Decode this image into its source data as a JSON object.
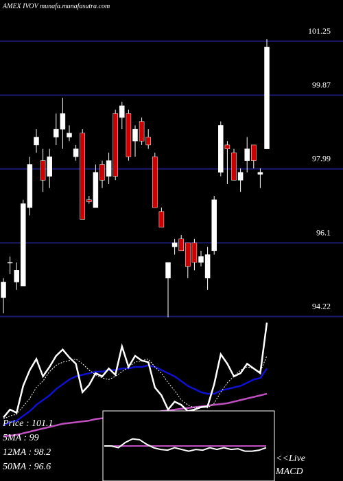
{
  "chart_data": {
    "type": "candlestick",
    "title": "AMEX  IVOV munafa.munafasutra.com",
    "ylim": [
      93.95,
      102.3
    ],
    "yticks": [
      101.25,
      99.87,
      97.99,
      96.1,
      94.22
    ],
    "grid": true,
    "grid_color": "#1a1a6e",
    "up_color": "#ffffff",
    "down_color": "#cc0000",
    "open": [
      94.7,
      95.6,
      95.1,
      95.0,
      97.0,
      98.6,
      98.2,
      97.8,
      98.8,
      99.0,
      98.8,
      98.3,
      98.9,
      97.2,
      97.0,
      98.1,
      97.8,
      99.4,
      99.3,
      99.4,
      98.7,
      99.2,
      98.8,
      98.3,
      96.9,
      95.2,
      96.0,
      96.2,
      96.1,
      96.1,
      95.6,
      95.2,
      95.9,
      97.9,
      98.6,
      98.4,
      97.7,
      98.2,
      98.6,
      97.85,
      98.5
    ],
    "high": [
      95.2,
      95.75,
      95.6,
      97.2,
      98.3,
      99.0,
      98.5,
      98.5,
      99.4,
      99.8,
      99.1,
      98.6,
      99.0,
      97.3,
      98.1,
      98.2,
      98.4,
      99.5,
      99.7,
      99.5,
      99.1,
      99.3,
      99.0,
      98.4,
      97.0,
      95.6,
      96.2,
      96.3,
      96.1,
      96.2,
      95.9,
      96.0,
      97.3,
      99.2,
      98.7,
      98.5,
      98.0,
      98.8,
      98.6,
      98.0,
      101.3
    ],
    "low": [
      94.3,
      95.3,
      94.9,
      95.0,
      96.8,
      98.4,
      97.4,
      97.5,
      98.6,
      98.5,
      98.7,
      98.2,
      96.7,
      97.1,
      97.0,
      97.5,
      97.6,
      97.7,
      99.0,
      98.2,
      98.3,
      98.6,
      98.5,
      97.0,
      96.5,
      94.2,
      95.8,
      95.9,
      95.2,
      95.4,
      95.5,
      94.9,
      95.8,
      97.8,
      97.6,
      97.7,
      97.4,
      97.9,
      98.0,
      97.5,
      98.5
    ],
    "close": [
      95.1,
      95.6,
      95.4,
      97.1,
      98.1,
      98.8,
      97.7,
      98.3,
      99.0,
      99.4,
      98.9,
      98.5,
      96.7,
      97.15,
      97.9,
      97.7,
      98.2,
      97.8,
      99.6,
      98.3,
      99.0,
      98.7,
      98.6,
      97.0,
      96.5,
      95.6,
      96.1,
      95.9,
      95.5,
      95.6,
      95.75,
      95.8,
      97.2,
      99.1,
      98.5,
      97.7,
      97.9,
      98.5,
      98.2,
      97.9,
      101.1
    ],
    "series": [
      {
        "name": "Price   : 101.1",
        "color": "#ffffff",
        "dash": false,
        "values": [
          95.1,
          95.6,
          95.4,
          97.1,
          98.1,
          98.8,
          97.7,
          98.3,
          99.0,
          99.4,
          98.9,
          98.5,
          96.7,
          97.15,
          97.9,
          97.7,
          98.2,
          97.8,
          99.6,
          98.3,
          99.0,
          98.7,
          98.6,
          97.0,
          96.5,
          95.6,
          96.1,
          95.9,
          95.5,
          95.6,
          95.75,
          95.8,
          97.2,
          99.1,
          98.5,
          97.7,
          97.9,
          98.5,
          98.2,
          97.9,
          101.1
        ]
      },
      {
        "name": "5MA   : 99",
        "color": "#ffffff",
        "dash": true,
        "values": [
          95.0,
          95.2,
          95.3,
          95.8,
          96.3,
          97.0,
          97.4,
          98.0,
          98.4,
          98.6,
          98.7,
          98.8,
          98.5,
          98.1,
          97.8,
          97.6,
          97.5,
          97.7,
          98.0,
          98.3,
          98.6,
          98.7,
          98.8,
          98.3,
          97.9,
          97.3,
          96.8,
          96.2,
          95.9,
          95.7,
          95.8,
          95.7,
          96.0,
          96.7,
          97.3,
          97.7,
          98.1,
          98.3,
          98.2,
          98.0,
          99.0
        ]
      },
      {
        "name": "12MA : 98.2",
        "color": "#1010d0",
        "dash": false,
        "values": [
          94.6,
          94.8,
          94.9,
          95.2,
          95.5,
          95.9,
          96.2,
          96.5,
          96.9,
          97.2,
          97.5,
          97.7,
          97.8,
          97.9,
          98.0,
          98.0,
          98.1,
          98.1,
          98.2,
          98.2,
          98.3,
          98.3,
          98.4,
          98.3,
          98.1,
          97.9,
          97.7,
          97.4,
          97.1,
          96.9,
          96.7,
          96.6,
          96.6,
          96.8,
          96.9,
          97.0,
          97.1,
          97.3,
          97.5,
          97.6,
          98.2
        ]
      },
      {
        "name": "50MA : 96.6",
        "color": "#c050c0",
        "dash": false,
        "values": [
          93.9,
          93.95,
          94.0,
          94.1,
          94.2,
          94.3,
          94.4,
          94.5,
          94.6,
          94.7,
          94.75,
          94.8,
          94.85,
          94.9,
          95.0,
          95.05,
          95.1,
          95.15,
          95.2,
          95.25,
          95.3,
          95.35,
          95.4,
          95.45,
          95.5,
          95.55,
          95.6,
          95.65,
          95.7,
          95.75,
          95.8,
          95.85,
          95.9,
          95.95,
          96.0,
          96.1,
          96.2,
          96.3,
          96.4,
          96.5,
          96.6
        ]
      }
    ],
    "macd": {
      "label": "MACD",
      "live": "<<Live",
      "ylim": [
        -1,
        1
      ],
      "values": [
        0,
        0,
        -0.05,
        0.1,
        0.2,
        0.18,
        0.05,
        -0.05,
        -0.1,
        -0.12,
        -0.05,
        -0.1,
        -0.15,
        -0.1,
        -0.12,
        -0.05,
        -0.1,
        -0.05,
        -0.1,
        -0.08,
        -0.15,
        -0.15,
        -0.12,
        -0.05
      ],
      "signal": [
        0,
        0,
        0,
        0,
        0,
        0,
        0,
        0,
        0,
        0,
        0,
        0,
        0,
        0,
        0,
        0,
        0,
        0,
        0,
        0,
        0,
        0,
        0,
        0
      ],
      "color": "#ffffff",
      "signal_color": "#c050c0"
    }
  }
}
